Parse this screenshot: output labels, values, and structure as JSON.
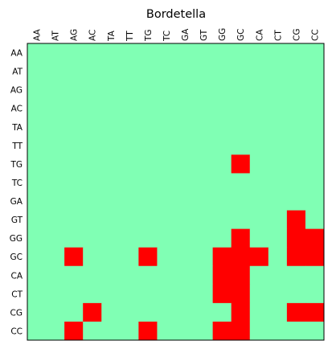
{
  "chart_data": {
    "type": "heatmap",
    "title": "Bordetella",
    "x_categories": [
      "AA",
      "AT",
      "AG",
      "AC",
      "TA",
      "TT",
      "TG",
      "TC",
      "GA",
      "GT",
      "GG",
      "GC",
      "CA",
      "CT",
      "CG",
      "CC"
    ],
    "y_categories": [
      "AA",
      "AT",
      "AG",
      "AC",
      "TA",
      "TT",
      "TG",
      "TC",
      "GA",
      "GT",
      "GG",
      "GC",
      "CA",
      "CT",
      "CG",
      "CC"
    ],
    "x_tick_position": "top",
    "x_tick_rotation": 90,
    "grid": false,
    "colors": {
      "0": "#80ffb4",
      "1": "#ff0000"
    },
    "matrix": [
      [
        0,
        0,
        0,
        0,
        0,
        0,
        0,
        0,
        0,
        0,
        0,
        0,
        0,
        0,
        0,
        0
      ],
      [
        0,
        0,
        0,
        0,
        0,
        0,
        0,
        0,
        0,
        0,
        0,
        0,
        0,
        0,
        0,
        0
      ],
      [
        0,
        0,
        0,
        0,
        0,
        0,
        0,
        0,
        0,
        0,
        0,
        0,
        0,
        0,
        0,
        0
      ],
      [
        0,
        0,
        0,
        0,
        0,
        0,
        0,
        0,
        0,
        0,
        0,
        0,
        0,
        0,
        0,
        0
      ],
      [
        0,
        0,
        0,
        0,
        0,
        0,
        0,
        0,
        0,
        0,
        0,
        0,
        0,
        0,
        0,
        0
      ],
      [
        0,
        0,
        0,
        0,
        0,
        0,
        0,
        0,
        0,
        0,
        0,
        0,
        0,
        0,
        0,
        0
      ],
      [
        0,
        0,
        0,
        0,
        0,
        0,
        0,
        0,
        0,
        0,
        0,
        1,
        0,
        0,
        0,
        0
      ],
      [
        0,
        0,
        0,
        0,
        0,
        0,
        0,
        0,
        0,
        0,
        0,
        0,
        0,
        0,
        0,
        0
      ],
      [
        0,
        0,
        0,
        0,
        0,
        0,
        0,
        0,
        0,
        0,
        0,
        0,
        0,
        0,
        0,
        0
      ],
      [
        0,
        0,
        0,
        0,
        0,
        0,
        0,
        0,
        0,
        0,
        0,
        0,
        0,
        0,
        1,
        0
      ],
      [
        0,
        0,
        0,
        0,
        0,
        0,
        0,
        0,
        0,
        0,
        0,
        1,
        0,
        0,
        1,
        1
      ],
      [
        0,
        0,
        1,
        0,
        0,
        0,
        1,
        0,
        0,
        0,
        1,
        1,
        1,
        0,
        1,
        1
      ],
      [
        0,
        0,
        0,
        0,
        0,
        0,
        0,
        0,
        0,
        0,
        1,
        1,
        0,
        0,
        0,
        0
      ],
      [
        0,
        0,
        0,
        0,
        0,
        0,
        0,
        0,
        0,
        0,
        1,
        1,
        0,
        0,
        0,
        0
      ],
      [
        0,
        0,
        0,
        1,
        0,
        0,
        0,
        0,
        0,
        0,
        0,
        1,
        0,
        0,
        1,
        1
      ],
      [
        0,
        0,
        1,
        0,
        0,
        0,
        1,
        0,
        0,
        0,
        1,
        1,
        0,
        0,
        0,
        0
      ]
    ]
  }
}
